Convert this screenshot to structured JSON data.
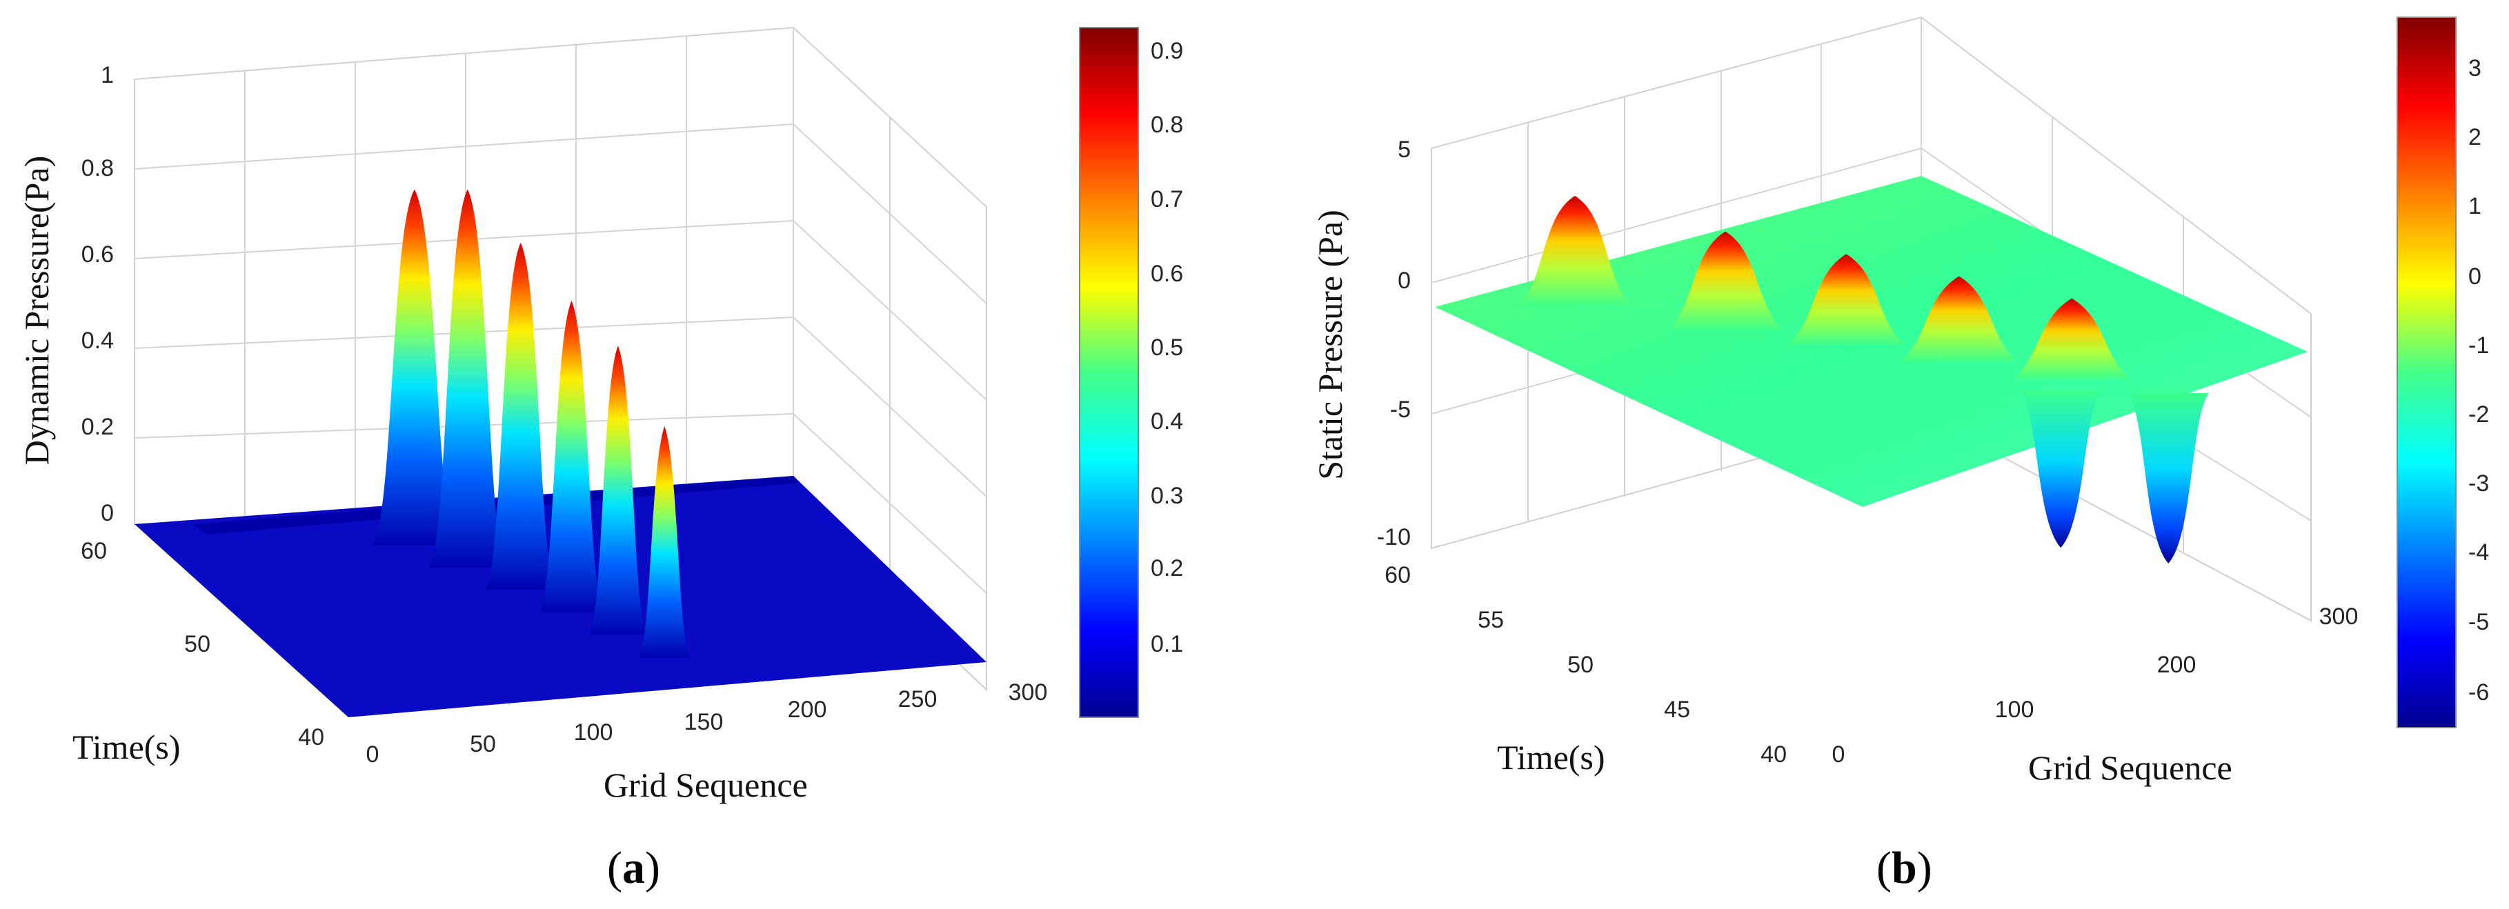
{
  "panels": [
    {
      "id": "a",
      "label_open": "(",
      "label_letter": "a",
      "label_close": ")",
      "chart_data": {
        "type": "surface",
        "xlabel": "Grid Sequence",
        "ylabel": "Time(s)",
        "zlabel": "Dynamic Pressure(Pa)",
        "xlim": [
          0,
          300
        ],
        "ylim": [
          40,
          60
        ],
        "zlim": [
          0,
          1
        ],
        "xticks": [
          "0",
          "50",
          "100",
          "150",
          "200",
          "250",
          "300"
        ],
        "yticks": [
          "40",
          "50",
          "60"
        ],
        "zticks": [
          "0",
          "0.2",
          "0.4",
          "0.6",
          "0.8",
          "1"
        ],
        "colorbar_ticks": [
          "0.1",
          "0.2",
          "0.3",
          "0.4",
          "0.5",
          "0.6",
          "0.7",
          "0.8",
          "0.9"
        ],
        "colorbar_range": [
          0.0,
          0.93
        ],
        "colormap": "jet",
        "peaks": [
          {
            "grid": 108,
            "time": 56,
            "value": 0.8
          },
          {
            "grid": 120,
            "time": 53.5,
            "value": 0.85
          },
          {
            "grid": 132,
            "time": 51,
            "value": 0.78
          },
          {
            "grid": 143,
            "time": 48.5,
            "value": 0.7
          },
          {
            "grid": 152,
            "time": 46,
            "value": 0.65
          },
          {
            "grid": 161,
            "time": 43.5,
            "value": 0.52
          }
        ]
      }
    },
    {
      "id": "b",
      "label_open": "(",
      "label_letter": "b",
      "label_close": ")",
      "chart_data": {
        "type": "surface",
        "xlabel": "Grid Sequence",
        "ylabel": "Time(s)",
        "zlabel": "Static Pressure (Pa)",
        "xlim": [
          0,
          300
        ],
        "ylim": [
          40,
          60
        ],
        "zlim": [
          -10,
          5
        ],
        "xticks": [
          "0",
          "100",
          "200",
          "300"
        ],
        "yticks": [
          "40",
          "45",
          "50",
          "55",
          "60"
        ],
        "zticks": [
          "-10",
          "-5",
          "0",
          "5"
        ],
        "colorbar_ticks": [
          "-6",
          "-5",
          "-4",
          "-3",
          "-2",
          "-1",
          "0",
          "1",
          "2",
          "3"
        ],
        "colorbar_range": [
          -6.5,
          3.9
        ],
        "colormap": "jet",
        "peaks": [
          {
            "grid": 60,
            "time": 58,
            "value": 4.0
          },
          {
            "grid": 100,
            "time": 54,
            "value": 3.5
          },
          {
            "grid": 135,
            "time": 51,
            "value": 3.2
          },
          {
            "grid": 165,
            "time": 48,
            "value": 3.0
          },
          {
            "grid": 195,
            "time": 45,
            "value": 2.8
          }
        ],
        "troughs": [
          {
            "grid": 175,
            "time": 44,
            "value": -6.0
          },
          {
            "grid": 215,
            "time": 42,
            "value": -6.5
          }
        ]
      }
    }
  ]
}
